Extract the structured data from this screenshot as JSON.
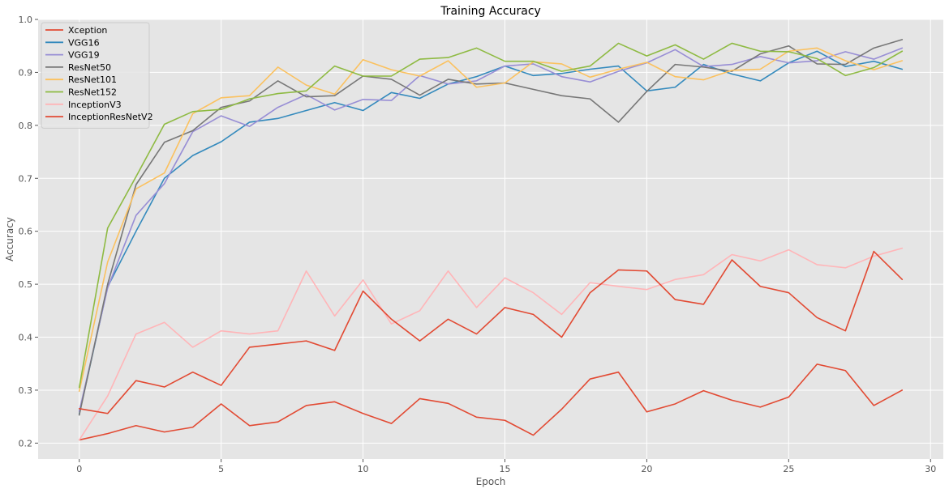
{
  "chart_data": {
    "type": "line",
    "title": "Training Accuracy",
    "xlabel": "Epoch",
    "ylabel": "Accuracy",
    "xlim": [
      -1.45,
      30.45
    ],
    "ylim": [
      0.17,
      1.0
    ],
    "xticks": [
      0,
      5,
      10,
      15,
      20,
      25,
      30
    ],
    "yticks": [
      0.2,
      0.3,
      0.4,
      0.5,
      0.6,
      0.7,
      0.8,
      0.9,
      1.0
    ],
    "xtick_labels": [
      "0",
      "5",
      "10",
      "15",
      "20",
      "25",
      "30"
    ],
    "ytick_labels": [
      "0.2",
      "0.3",
      "0.4",
      "0.5",
      "0.6",
      "0.7",
      "0.8",
      "0.9",
      "1.0"
    ],
    "grid": true,
    "legend_position": "top-left",
    "x": [
      0,
      1,
      2,
      3,
      4,
      5,
      6,
      7,
      8,
      9,
      10,
      11,
      12,
      13,
      14,
      15,
      16,
      17,
      18,
      19,
      20,
      21,
      22,
      23,
      24,
      25,
      26,
      27,
      28,
      29
    ],
    "series": [
      {
        "name": "Xception",
        "color": "#E24A33",
        "values": [
          0.206,
          0.218,
          0.233,
          0.221,
          0.23,
          0.274,
          0.233,
          0.24,
          0.271,
          0.278,
          0.256,
          0.237,
          0.284,
          0.275,
          0.249,
          0.243,
          0.215,
          0.264,
          0.321,
          0.334,
          0.259,
          0.274,
          0.299,
          0.281,
          0.268,
          0.287,
          0.349,
          0.337,
          0.271,
          0.3
        ]
      },
      {
        "name": "VGG16",
        "color": "#348ABD",
        "values": [
          0.255,
          0.495,
          0.6,
          0.7,
          0.743,
          0.769,
          0.806,
          0.813,
          0.828,
          0.843,
          0.828,
          0.862,
          0.851,
          0.878,
          0.892,
          0.912,
          0.894,
          0.898,
          0.906,
          0.912,
          0.865,
          0.872,
          0.915,
          0.897,
          0.884,
          0.918,
          0.94,
          0.911,
          0.921,
          0.906
        ]
      },
      {
        "name": "VGG19",
        "color": "#988ED5",
        "values": [
          0.26,
          0.493,
          0.63,
          0.69,
          0.788,
          0.818,
          0.798,
          0.834,
          0.858,
          0.829,
          0.849,
          0.847,
          0.894,
          0.878,
          0.884,
          0.912,
          0.916,
          0.892,
          0.882,
          0.902,
          0.918,
          0.943,
          0.911,
          0.915,
          0.93,
          0.918,
          0.922,
          0.939,
          0.925,
          0.946
        ]
      },
      {
        "name": "ResNet50",
        "color": "#777777",
        "values": [
          0.253,
          0.5,
          0.688,
          0.768,
          0.79,
          0.834,
          0.846,
          0.884,
          0.854,
          0.856,
          0.893,
          0.887,
          0.857,
          0.887,
          0.878,
          0.88,
          0.868,
          0.856,
          0.85,
          0.806,
          0.864,
          0.915,
          0.91,
          0.902,
          0.935,
          0.95,
          0.916,
          0.915,
          0.946,
          0.962
        ]
      },
      {
        "name": "ResNet101",
        "color": "#FBC15E",
        "values": [
          0.298,
          0.542,
          0.68,
          0.71,
          0.822,
          0.852,
          0.856,
          0.91,
          0.876,
          0.859,
          0.924,
          0.905,
          0.893,
          0.922,
          0.872,
          0.88,
          0.92,
          0.916,
          0.891,
          0.906,
          0.919,
          0.892,
          0.886,
          0.904,
          0.906,
          0.94,
          0.946,
          0.922,
          0.905,
          0.922
        ]
      },
      {
        "name": "ResNet152",
        "color": "#8EBA42",
        "values": [
          0.305,
          0.606,
          0.703,
          0.802,
          0.826,
          0.83,
          0.85,
          0.86,
          0.865,
          0.912,
          0.893,
          0.893,
          0.925,
          0.928,
          0.946,
          0.921,
          0.921,
          0.902,
          0.912,
          0.955,
          0.931,
          0.952,
          0.925,
          0.955,
          0.94,
          0.939,
          0.926,
          0.894,
          0.909,
          0.94
        ]
      },
      {
        "name": "InceptionV3",
        "color": "#FFB5B8",
        "values": [
          0.206,
          0.289,
          0.406,
          0.428,
          0.381,
          0.412,
          0.406,
          0.412,
          0.525,
          0.44,
          0.508,
          0.425,
          0.45,
          0.525,
          0.456,
          0.512,
          0.484,
          0.443,
          0.503,
          0.496,
          0.49,
          0.509,
          0.518,
          0.556,
          0.544,
          0.565,
          0.537,
          0.531,
          0.553,
          0.568
        ]
      },
      {
        "name": "InceptionResNetV2",
        "color": "#E24A33",
        "values": [
          0.265,
          0.256,
          0.318,
          0.306,
          0.334,
          0.309,
          0.381,
          0.387,
          0.393,
          0.375,
          0.487,
          0.434,
          0.393,
          0.434,
          0.406,
          0.456,
          0.443,
          0.4,
          0.484,
          0.527,
          0.525,
          0.471,
          0.462,
          0.546,
          0.496,
          0.484,
          0.437,
          0.412,
          0.562,
          0.509
        ]
      }
    ]
  }
}
